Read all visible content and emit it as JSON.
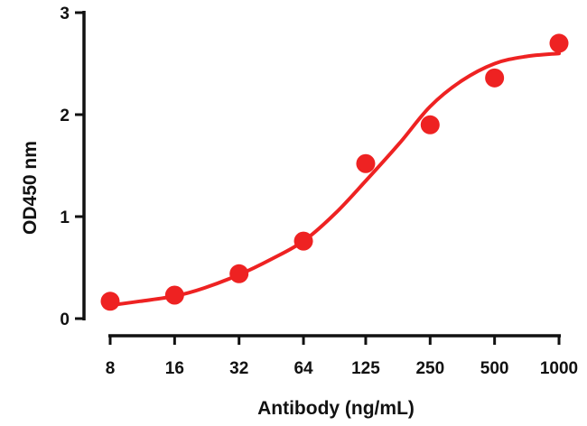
{
  "chart_data": {
    "type": "scatter",
    "title": "",
    "xlabel": "Antibody (ng/mL)",
    "ylabel": "OD450 nm",
    "x_scale": "log2",
    "x_ticks": [
      "8",
      "16",
      "32",
      "64",
      "125",
      "250",
      "500",
      "1000"
    ],
    "x_tick_values": [
      8,
      16,
      32,
      64,
      125,
      250,
      500,
      1000
    ],
    "y_ticks": [
      "0",
      "1",
      "2",
      "3"
    ],
    "ylim": [
      0,
      3
    ],
    "grid": false,
    "legend": "none",
    "series": [
      {
        "type": "scatter",
        "x": [
          8,
          16,
          32,
          64,
          125,
          250,
          500,
          1000
        ],
        "y": [
          0.17,
          0.23,
          0.44,
          0.76,
          1.52,
          1.9,
          2.36,
          2.7
        ]
      },
      {
        "type": "line",
        "fit": "sigmoidal",
        "x": [
          8,
          11,
          16,
          22,
          32,
          45,
          64,
          90,
          125,
          180,
          250,
          350,
          500,
          700,
          1000
        ],
        "y": [
          0.13,
          0.17,
          0.22,
          0.3,
          0.43,
          0.58,
          0.76,
          1.03,
          1.35,
          1.72,
          2.08,
          2.33,
          2.5,
          2.57,
          2.6
        ]
      }
    ],
    "colors": {
      "series": "#ee2222",
      "axis": "#111111"
    }
  }
}
